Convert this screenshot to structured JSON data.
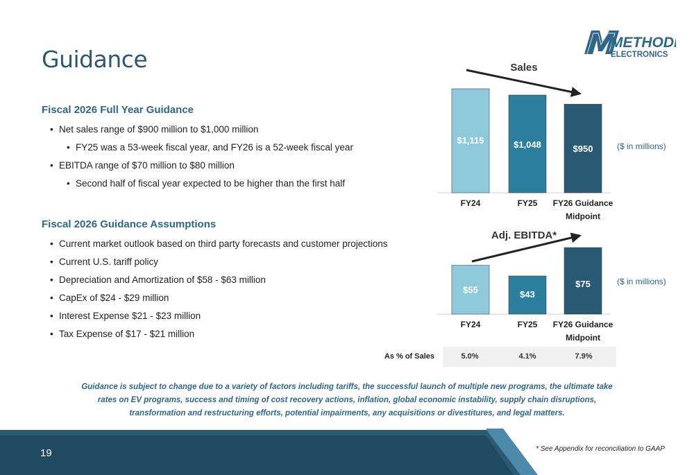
{
  "page": {
    "title": "Guidance",
    "number": "19"
  },
  "logo": {
    "primary": "METHODE",
    "secondary": "ELECTRONICS",
    "brand_color": "#2e6788"
  },
  "guidance": {
    "title": "Fiscal 2026 Full Year Guidance",
    "items": [
      {
        "text": "Net sales range of $900 million to $1,000 million",
        "level": 1
      },
      {
        "text": "FY25 was a 53-week fiscal year, and FY26 is a 52-week fiscal year",
        "level": 2
      },
      {
        "text": "EBITDA range of $70 million to $80 million",
        "level": 1
      },
      {
        "text": "Second half of fiscal year expected to be higher than the first half",
        "level": 2
      }
    ]
  },
  "assumptions": {
    "title": "Fiscal 2026 Guidance Assumptions",
    "items": [
      "Current market outlook based on third party forecasts and customer projections",
      "Current U.S. tariff policy",
      "Depreciation and Amortization of $58 - $63 million",
      "CapEx of $24 - $29 million",
      "Interest Expense $21 - $23 million",
      "Tax Expense of $17 - $21 million"
    ]
  },
  "chart_data": [
    {
      "type": "bar",
      "title": "Sales",
      "units_note": "($ in millions)",
      "categories": [
        "FY24",
        "FY25",
        "FY26 Guidance Midpoint"
      ],
      "values": [
        1115,
        1048,
        950
      ],
      "value_labels": [
        "$1,115",
        "$1,048",
        "$950"
      ],
      "colors": [
        "#8ecadc",
        "#2c7f9c",
        "#2a5a73"
      ],
      "ylim": [
        0,
        1115
      ],
      "trend": "down"
    },
    {
      "type": "bar",
      "title": "Adj. EBITDA*",
      "units_note": "($ in millions)",
      "categories": [
        "FY24",
        "FY25",
        "FY26 Guidance Midpoint"
      ],
      "values": [
        55,
        43,
        75
      ],
      "value_labels": [
        "$55",
        "$43",
        "$75"
      ],
      "colors": [
        "#8ecadc",
        "#2c7f9c",
        "#2a5a73"
      ],
      "ylim": [
        0,
        75
      ],
      "trend": "up",
      "row_label": "As % of Sales",
      "row_values": [
        "5.0%",
        "4.1%",
        "7.9%"
      ]
    }
  ],
  "disclaimer": "Guidance is subject to change due to a variety of factors including tariffs, the successful launch of multiple new programs, the ultimate take rates on EV programs, success and timing of cost recovery actions, inflation, global economic instability, supply chain disruptions, transformation and restructuring efforts, potential impairments, any acquisitions or divestitures, and legal matters.",
  "footnote": "* See Appendix for reconciliation to GAAP",
  "footer_colors": [
    "#2b5a73",
    "#1f4a61",
    "#3a7391"
  ]
}
